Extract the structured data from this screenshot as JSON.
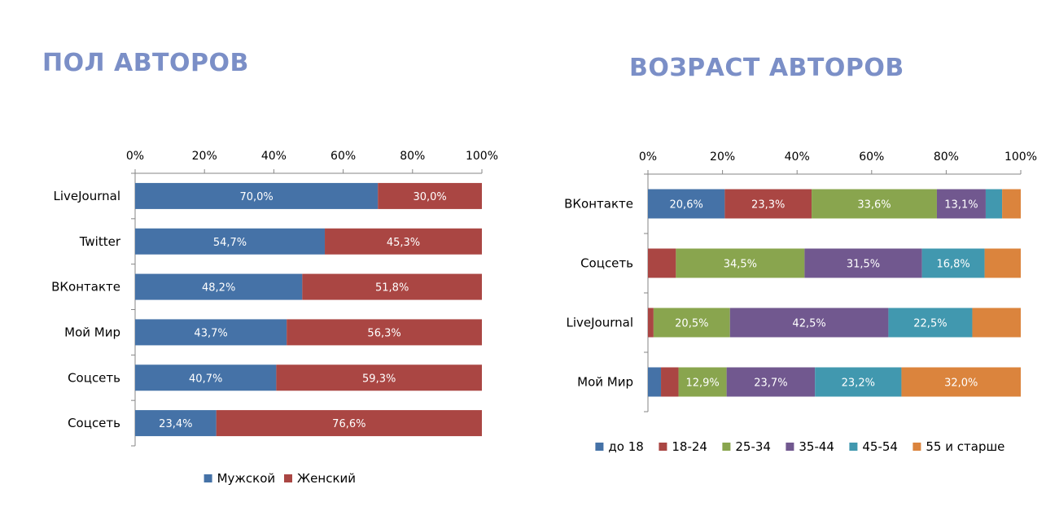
{
  "chart_data": [
    {
      "type": "bar",
      "orientation": "horizontal",
      "stacked": "percent",
      "title": "ПОЛ АВТОРОВ",
      "categories": [
        "LiveJournal",
        "Twitter",
        "ВКонтакте",
        "Мой Мир",
        "Соцсеть",
        "Соцсеть"
      ],
      "series": [
        {
          "name": "Мужской",
          "color": "#4572a7",
          "values": [
            70.0,
            54.7,
            48.2,
            43.7,
            40.7,
            23.4
          ],
          "labels": [
            "70,0%",
            "54,7%",
            "48,2%",
            "43,7%",
            "40,7%",
            "23,4%"
          ]
        },
        {
          "name": "Женский",
          "color": "#aa4643",
          "values": [
            30.0,
            45.3,
            51.8,
            56.3,
            59.3,
            76.6
          ],
          "labels": [
            "30,0%",
            "45,3%",
            "51,8%",
            "56,3%",
            "59,3%",
            "76,6%"
          ]
        }
      ],
      "xlim": [
        0,
        100
      ],
      "ticks": [
        "0%",
        "20%",
        "40%",
        "60%",
        "80%",
        "100%"
      ],
      "axis_position": "top",
      "grid": false,
      "legend": "bottom"
    },
    {
      "type": "bar",
      "orientation": "horizontal",
      "stacked": "percent",
      "title": "ВОЗРАСТ АВТОРОВ",
      "categories": [
        "ВКонтакте",
        "Соцсеть",
        "LiveJournal",
        "Мой Мир"
      ],
      "series": [
        {
          "name": "до 18",
          "color": "#4572a7",
          "values": [
            20.6,
            0.0,
            0.0,
            3.5
          ],
          "labels": [
            "20,6%",
            "",
            "",
            ""
          ]
        },
        {
          "name": "18-24",
          "color": "#aa4643",
          "values": [
            23.3,
            7.5,
            1.5,
            4.7
          ],
          "labels": [
            "23,3%",
            "",
            "",
            ""
          ]
        },
        {
          "name": "25-34",
          "color": "#89a54e",
          "values": [
            33.6,
            34.5,
            20.5,
            12.9
          ],
          "labels": [
            "33,6%",
            "34,5%",
            "20,5%",
            "12,9%"
          ]
        },
        {
          "name": "35-44",
          "color": "#71588f",
          "values": [
            13.1,
            31.5,
            42.5,
            23.7
          ],
          "labels": [
            "13,1%",
            "31,5%",
            "42,5%",
            "23,7%"
          ]
        },
        {
          "name": "45-54",
          "color": "#4198af",
          "values": [
            4.4,
            16.8,
            22.5,
            23.2
          ],
          "labels": [
            "",
            "16,8%",
            "22,5%",
            "23,2%"
          ]
        },
        {
          "name": "55 и старше",
          "color": "#db843d",
          "values": [
            5.0,
            9.7,
            13.0,
            32.0
          ],
          "labels": [
            "",
            "",
            "",
            "32,0%"
          ]
        }
      ],
      "xlim": [
        0,
        100
      ],
      "ticks": [
        "0%",
        "20%",
        "40%",
        "60%",
        "80%",
        "100%"
      ],
      "axis_position": "top",
      "grid": false,
      "legend": "bottom"
    }
  ]
}
